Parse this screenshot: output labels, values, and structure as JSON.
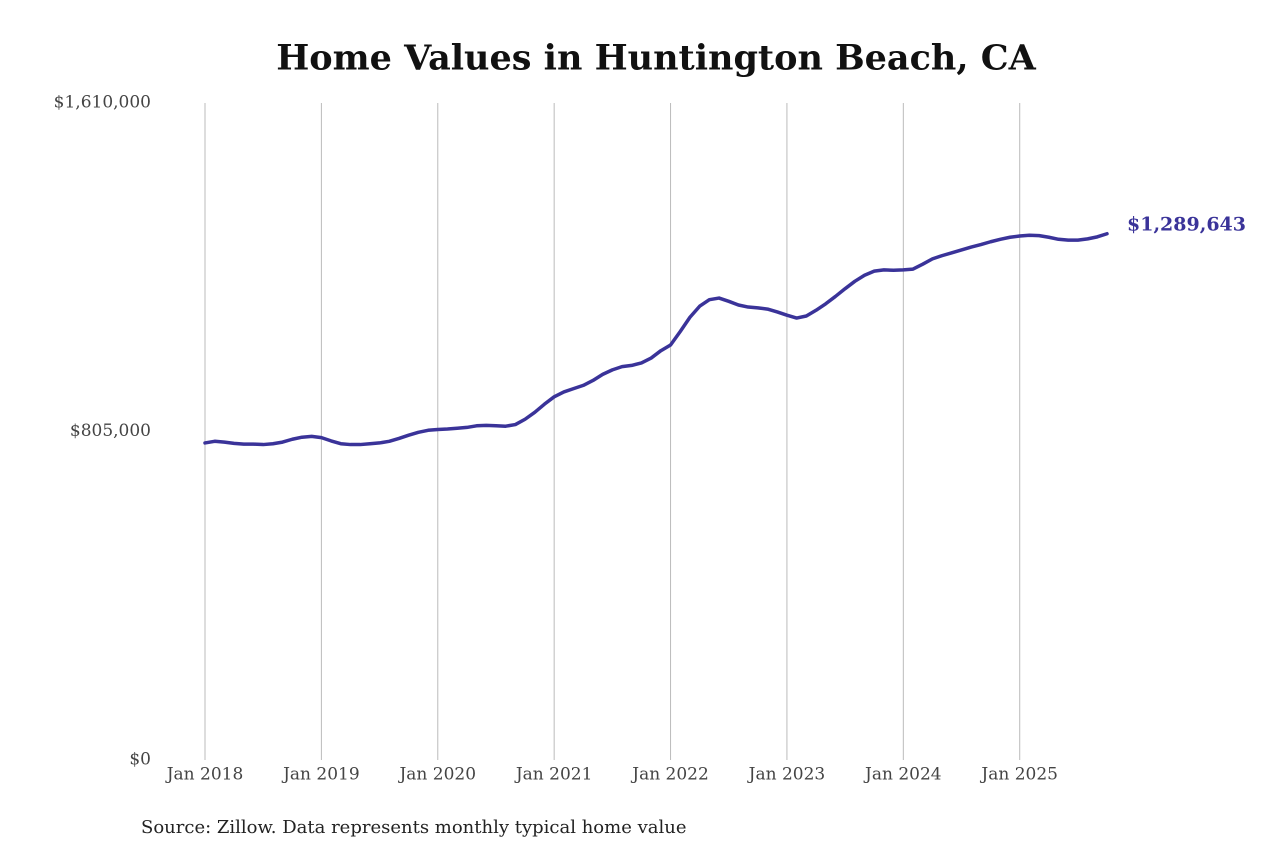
{
  "chart_data": {
    "type": "line",
    "title": "Home Values in Huntington Beach, CA",
    "source": "Source: Zillow. Data represents monthly typical home value",
    "x": [
      "2018-01",
      "2018-02",
      "2018-03",
      "2018-04",
      "2018-05",
      "2018-06",
      "2018-07",
      "2018-08",
      "2018-09",
      "2018-10",
      "2018-11",
      "2018-12",
      "2019-01",
      "2019-02",
      "2019-03",
      "2019-04",
      "2019-05",
      "2019-06",
      "2019-07",
      "2019-08",
      "2019-09",
      "2019-10",
      "2019-11",
      "2019-12",
      "2020-01",
      "2020-02",
      "2020-03",
      "2020-04",
      "2020-05",
      "2020-06",
      "2020-07",
      "2020-08",
      "2020-09",
      "2020-10",
      "2020-11",
      "2020-12",
      "2021-01",
      "2021-02",
      "2021-03",
      "2021-04",
      "2021-05",
      "2021-06",
      "2021-07",
      "2021-08",
      "2021-09",
      "2021-10",
      "2021-11",
      "2021-12",
      "2022-01",
      "2022-02",
      "2022-03",
      "2022-04",
      "2022-05",
      "2022-06",
      "2022-07",
      "2022-08",
      "2022-09",
      "2022-10",
      "2022-11",
      "2022-12",
      "2023-01",
      "2023-02",
      "2023-03",
      "2023-04",
      "2023-05",
      "2023-06",
      "2023-07",
      "2023-08",
      "2023-09",
      "2023-10",
      "2023-11",
      "2023-12",
      "2024-01",
      "2024-02",
      "2024-03",
      "2024-04",
      "2024-05",
      "2024-06",
      "2024-07",
      "2024-08",
      "2024-09",
      "2024-10",
      "2024-11",
      "2024-12",
      "2025-01",
      "2025-02",
      "2025-03",
      "2025-04",
      "2025-05",
      "2025-06",
      "2025-07",
      "2025-08",
      "2025-09",
      "2025-10"
    ],
    "series": [
      {
        "name": "Typical home value",
        "color": "#3a3399",
        "values": [
          777000,
          781000,
          779000,
          776000,
          774000,
          774000,
          773000,
          775000,
          779000,
          786000,
          791000,
          793000,
          790000,
          782000,
          775000,
          773000,
          773000,
          775000,
          777000,
          781000,
          788000,
          796000,
          803000,
          808000,
          810000,
          811000,
          813000,
          815000,
          819000,
          820000,
          819000,
          818000,
          822000,
          835000,
          852000,
          872000,
          890000,
          902000,
          910000,
          918000,
          930000,
          945000,
          956000,
          964000,
          967000,
          973000,
          985000,
          1003000,
          1017000,
          1050000,
          1085000,
          1112000,
          1128000,
          1132000,
          1124000,
          1115000,
          1110000,
          1108000,
          1105000,
          1098000,
          1090000,
          1083000,
          1088000,
          1102000,
          1118000,
          1136000,
          1155000,
          1173000,
          1188000,
          1198000,
          1201000,
          1200000,
          1201000,
          1203000,
          1215000,
          1228000,
          1236000,
          1243000,
          1250000,
          1257000,
          1263000,
          1270000,
          1276000,
          1281000,
          1284000,
          1286000,
          1285000,
          1281000,
          1276000,
          1274000,
          1274000,
          1277000,
          1282000,
          1289643
        ],
        "value_labels": [
          null,
          null,
          null,
          null,
          null,
          null,
          null,
          null,
          null,
          null,
          null,
          null,
          null,
          null,
          null,
          null,
          null,
          null,
          null,
          null,
          null,
          null,
          null,
          null,
          null,
          null,
          null,
          null,
          null,
          null,
          null,
          null,
          null,
          null,
          null,
          null,
          null,
          null,
          null,
          null,
          null,
          null,
          null,
          null,
          null,
          null,
          null,
          null,
          null,
          null,
          null,
          null,
          null,
          null,
          null,
          null,
          null,
          null,
          null,
          null,
          null,
          null,
          null,
          null,
          null,
          null,
          null,
          null,
          null,
          null,
          null,
          null,
          null,
          null,
          null,
          null,
          null,
          null,
          null,
          null,
          null,
          null,
          null,
          null,
          null,
          null,
          null,
          null,
          null,
          null,
          null,
          null,
          null,
          "$1,289,643"
        ]
      }
    ],
    "xlim": [
      "2018-01",
      "2025-10"
    ],
    "xticks": [
      {
        "value": "2018-01",
        "label": "Jan 2018"
      },
      {
        "value": "2019-01",
        "label": "Jan 2019"
      },
      {
        "value": "2020-01",
        "label": "Jan 2020"
      },
      {
        "value": "2021-01",
        "label": "Jan 2021"
      },
      {
        "value": "2022-01",
        "label": "Jan 2022"
      },
      {
        "value": "2023-01",
        "label": "Jan 2023"
      },
      {
        "value": "2024-01",
        "label": "Jan 2024"
      },
      {
        "value": "2025-01",
        "label": "Jan 2025"
      }
    ],
    "ylim": [
      0,
      1610000
    ],
    "yticks": [
      {
        "value": 0,
        "label": "$0"
      },
      {
        "value": 805000,
        "label": "$805,000"
      },
      {
        "value": 1610000,
        "label": "$1,610,000"
      }
    ],
    "x_grid": true
  }
}
